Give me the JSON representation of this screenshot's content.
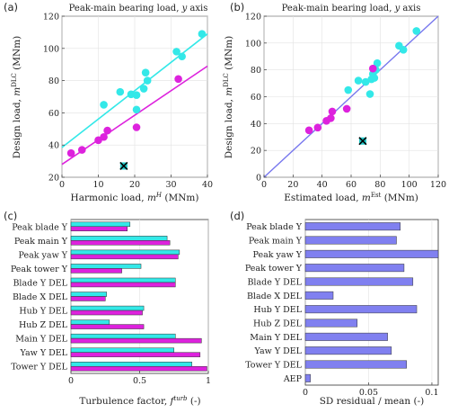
{
  "colors": {
    "cyan": "#33e8e8",
    "magenta": "#dd22dd",
    "blue_line": "#7777ee",
    "bar_blue": "#8080f0",
    "outlier_fill": "#22c8c8"
  },
  "chart_data": [
    {
      "panel": "(a)",
      "type": "scatter",
      "title": "Peak-main bearing load, y axis",
      "xlabel": "Harmonic load, m^H (MNm)",
      "ylabel": "Design load, m^DLC (MNm)",
      "xlim": [
        0,
        40
      ],
      "ylim": [
        20,
        120
      ],
      "xticks": [
        "0",
        "10",
        "20",
        "30",
        "40"
      ],
      "yticks": [
        "20",
        "40",
        "60",
        "80",
        "100",
        "120"
      ],
      "series": [
        {
          "color": "cyan",
          "points": [
            [
              11.5,
              65
            ],
            [
              16,
              73
            ],
            [
              19,
              71.5
            ],
            [
              20.5,
              62
            ],
            [
              20.5,
              71
            ],
            [
              22.5,
              75
            ],
            [
              23,
              85
            ],
            [
              23.5,
              80
            ],
            [
              31.5,
              98
            ],
            [
              33,
              95
            ],
            [
              38.5,
              109
            ]
          ],
          "fit": [
            [
              0,
              38.5
            ],
            [
              40,
              109
            ]
          ]
        },
        {
          "color": "magenta",
          "points": [
            [
              2.5,
              35
            ],
            [
              5.5,
              37
            ],
            [
              10,
              43
            ],
            [
              11.5,
              45
            ],
            [
              12.5,
              49
            ],
            [
              20.5,
              51
            ],
            [
              32,
              81
            ]
          ],
          "fit": [
            [
              0,
              28
            ],
            [
              40,
              89
            ]
          ]
        }
      ],
      "outlier": [
        17,
        27
      ]
    },
    {
      "panel": "(b)",
      "type": "scatter",
      "title": "Peak-main bearing load, y axis",
      "xlabel": "Estimated load, m^Est (MNm)",
      "ylabel": "Design load, m^DLC (MNm)",
      "xlim": [
        0,
        120
      ],
      "ylim": [
        0,
        120
      ],
      "xticks": [
        "0",
        "20",
        "40",
        "60",
        "80",
        "100",
        "120"
      ],
      "yticks": [
        "0",
        "20",
        "40",
        "60",
        "80",
        "100",
        "120"
      ],
      "series": [
        {
          "color": "cyan",
          "points": [
            [
              58,
              65
            ],
            [
              65,
              72
            ],
            [
              70,
              71
            ],
            [
              73,
              62
            ],
            [
              74,
              73
            ],
            [
              75,
              77
            ],
            [
              76,
              74
            ],
            [
              77,
              80
            ],
            [
              78,
              85
            ],
            [
              93,
              98
            ],
            [
              96,
              95
            ],
            [
              105,
              109
            ]
          ],
          "fit": null
        },
        {
          "color": "magenta",
          "points": [
            [
              31,
              35
            ],
            [
              37,
              37
            ],
            [
              43,
              42
            ],
            [
              46,
              44
            ],
            [
              47,
              49
            ],
            [
              57,
              51
            ],
            [
              75,
              81
            ]
          ],
          "fit": null
        }
      ],
      "identity_line": [
        [
          0,
          0
        ],
        [
          120,
          120
        ]
      ],
      "outlier": [
        68,
        27
      ]
    },
    {
      "panel": "(c)",
      "type": "bar",
      "orientation": "horizontal",
      "categories": [
        "Peak blade Y",
        "Peak main Y",
        "Peak yaw Y",
        "Peak tower Y",
        "Blade Y DEL",
        "Blade X DEL",
        "Hub Y DEL",
        "Hub Z DEL",
        "Main Y DEL",
        "Yaw Y DEL",
        "Tower Y DEL"
      ],
      "series": [
        {
          "color": "cyan",
          "values": [
            0.43,
            0.7,
            0.79,
            0.51,
            0.76,
            0.26,
            0.53,
            0.28,
            0.76,
            0.75,
            0.88
          ]
        },
        {
          "color": "magenta",
          "values": [
            0.41,
            0.72,
            0.78,
            0.37,
            0.76,
            0.25,
            0.52,
            0.53,
            0.95,
            0.94,
            0.99
          ]
        }
      ],
      "xlabel": "Turbulence factor, f^turb (-)",
      "xlim": [
        0,
        1
      ],
      "xticks": [
        "0",
        "0.5",
        "1"
      ]
    },
    {
      "panel": "(d)",
      "type": "bar",
      "orientation": "horizontal",
      "categories": [
        "Peak blade Y",
        "Peak main Y",
        "Peak yaw Y",
        "Peak tower Y",
        "Blade Y DEL",
        "Blade X DEL",
        "Hub Y DEL",
        "Hub Z DEL",
        "Main Y DEL",
        "Yaw Y DEL",
        "Tower Y DEL",
        "AEP"
      ],
      "series": [
        {
          "color": "bar_blue",
          "values": [
            0.075,
            0.072,
            0.105,
            0.078,
            0.085,
            0.022,
            0.088,
            0.041,
            0.065,
            0.068,
            0.08,
            0.004
          ]
        }
      ],
      "xlabel": "SD residual / mean (-)",
      "xlim": [
        0,
        0.105
      ],
      "xticks": [
        "0",
        "0.05",
        "0.1"
      ]
    }
  ]
}
